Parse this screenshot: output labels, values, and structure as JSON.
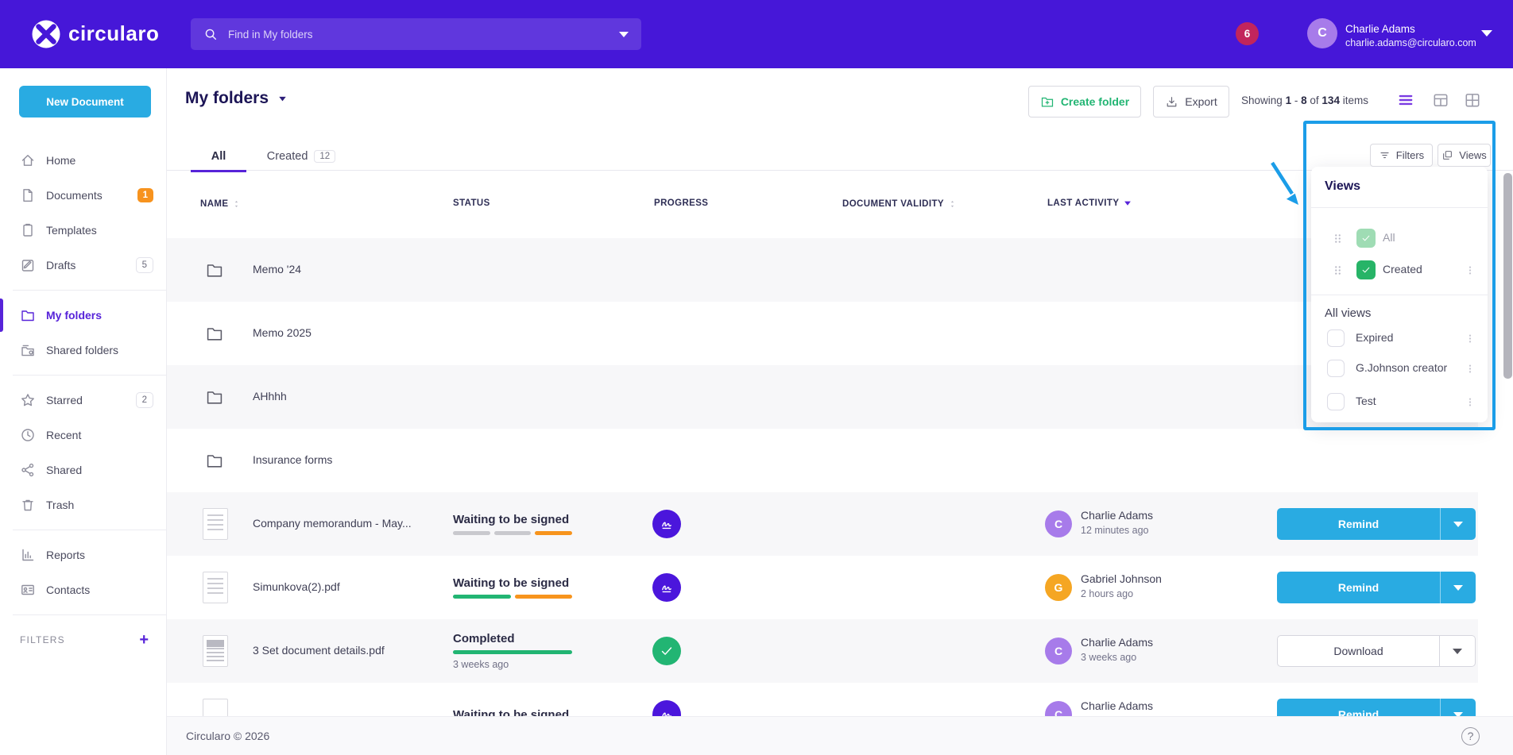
{
  "topbar": {
    "brand": "circularo",
    "search": {
      "placeholder": "Find in My folders"
    },
    "notification_count": "6",
    "user": {
      "initial": "C",
      "name": "Charlie Adams",
      "email": "charlie.adams@circularo.com"
    }
  },
  "sidebar": {
    "new_document_label": "New Document",
    "items": [
      {
        "id": "home",
        "label": "Home",
        "icon": "home"
      },
      {
        "id": "documents",
        "label": "Documents",
        "icon": "document",
        "badge": "1",
        "badge_style": "solid-orange"
      },
      {
        "id": "templates",
        "label": "Templates",
        "icon": "clipboard"
      },
      {
        "id": "drafts",
        "label": "Drafts",
        "icon": "edit",
        "badge": "5",
        "badge_style": "outline",
        "divider_after": true
      },
      {
        "id": "my-folders",
        "label": "My folders",
        "icon": "folder",
        "active": true
      },
      {
        "id": "shared-folders",
        "label": "Shared folders",
        "icon": "folder-shared",
        "divider_after": true
      },
      {
        "id": "starred",
        "label": "Starred",
        "icon": "star",
        "badge": "2",
        "badge_style": "outline"
      },
      {
        "id": "recent",
        "label": "Recent",
        "icon": "clock"
      },
      {
        "id": "shared",
        "label": "Shared",
        "icon": "share"
      },
      {
        "id": "trash",
        "label": "Trash",
        "icon": "trash",
        "divider_after": true
      },
      {
        "id": "reports",
        "label": "Reports",
        "icon": "chart"
      },
      {
        "id": "contacts",
        "label": "Contacts",
        "icon": "contact-card",
        "divider_after": true
      }
    ],
    "filters_label": "FILTERS",
    "filters_add": "+"
  },
  "header": {
    "title": "My folders",
    "create_folder_label": "Create folder",
    "export_label": "Export",
    "showing": {
      "t1": "Showing",
      "start": "1",
      "dash": "-",
      "end": "8",
      "of": "of",
      "total": "134",
      "items": "items"
    }
  },
  "tabs": [
    {
      "label": "All",
      "active": true
    },
    {
      "label": "Created",
      "badge": "12"
    }
  ],
  "table": {
    "columns": [
      {
        "label": "NAME",
        "sort": "both"
      },
      {
        "label": "STATUS"
      },
      {
        "label": "PROGRESS"
      },
      {
        "label": "DOCUMENT VALIDITY",
        "sort": "both"
      },
      {
        "label": "LAST ACTIVITY",
        "sort": "desc"
      }
    ],
    "rows": [
      {
        "kind": "folder",
        "name": "Memo '24"
      },
      {
        "kind": "folder",
        "name": "Memo 2025"
      },
      {
        "kind": "folder",
        "name": "AHhhh"
      },
      {
        "kind": "folder",
        "name": "Insurance forms"
      },
      {
        "kind": "document",
        "doc_icon": "lines",
        "name": "Company memorandum - May...",
        "status": "Waiting to be signed",
        "progress_segments": [
          "gray",
          "gray",
          "orange"
        ],
        "progress_icon": "signature",
        "actor": {
          "initial": "C",
          "color": "purple",
          "name": "Charlie Adams",
          "time": "12 minutes ago"
        },
        "action": {
          "label": "Remind",
          "style": "primary"
        }
      },
      {
        "kind": "document",
        "doc_icon": "lines",
        "name": "Simunkova(2).pdf",
        "status": "Waiting to be signed",
        "progress_segments": [
          "green",
          "orange"
        ],
        "progress_icon": "signature",
        "actor": {
          "initial": "G",
          "color": "orange",
          "name": "Gabriel Johnson",
          "time": "2 hours ago"
        },
        "action": {
          "label": "Remind",
          "style": "primary"
        }
      },
      {
        "kind": "document",
        "doc_icon": "photo",
        "name": "3 Set document details.pdf",
        "status": "Completed",
        "status_sub": "3 weeks ago",
        "progress_segments": [
          "green-full"
        ],
        "progress_icon": "check",
        "actor": {
          "initial": "C",
          "color": "purple",
          "name": "Charlie Adams",
          "time": "3 weeks ago"
        },
        "action": {
          "label": "Download",
          "style": "secondary"
        }
      },
      {
        "kind": "document",
        "doc_icon": "blank",
        "name": "",
        "status": "Waiting to be signed",
        "progress_segments": [],
        "progress_icon": "signature",
        "actor": {
          "initial": "C",
          "color": "purple",
          "name": "Charlie Adams",
          "time": ""
        },
        "action": {
          "label": "Remind",
          "style": "primary"
        }
      }
    ]
  },
  "views_panel": {
    "filters_button": "Filters",
    "views_button": "Views",
    "title": "Views",
    "pinned_views": [
      {
        "label": "All",
        "checked": true,
        "check_style": "light-green",
        "label_muted": true,
        "has_menu": false
      },
      {
        "label": "Created",
        "checked": true,
        "check_style": "green",
        "label_muted": false,
        "has_menu": true
      }
    ],
    "all_views_label": "All views",
    "all_views": [
      {
        "label": "Expired",
        "checked": false,
        "has_menu": true
      },
      {
        "label": "G.Johnson creator",
        "checked": false,
        "has_menu": true
      },
      {
        "label": "Test",
        "checked": false,
        "has_menu": true
      }
    ]
  },
  "footer": {
    "copyright": "Circularo © 2026",
    "help": "?"
  },
  "colors": {
    "topbar": "#4617D8",
    "accent_purple": "#5723D9",
    "primary_blue": "#29ABE2",
    "annotation_blue": "#1B9DE8",
    "green": "#22B573",
    "light_green": "#9FDCB4",
    "orange": "#F7941D",
    "badge_orange": "#F7931E",
    "badge_red": "#C2255C",
    "avatar_purple": "#A77BEA",
    "avatar_orange": "#F5A623",
    "seg_gray": "#C9C9CE"
  }
}
